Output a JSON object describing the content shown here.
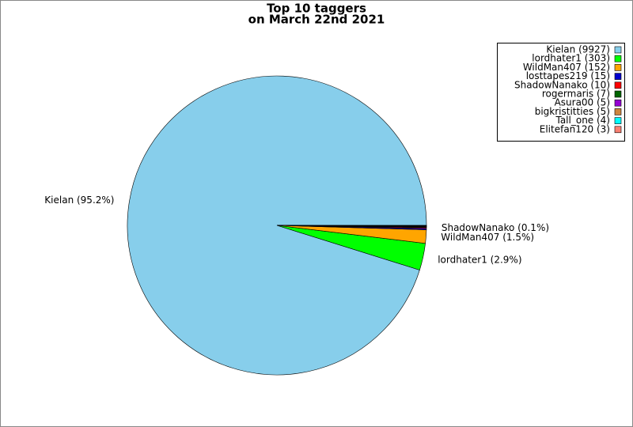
{
  "chart_data": {
    "type": "pie",
    "title": "Top 10 taggers",
    "subtitle": "on March 22nd 2021",
    "categories": [
      "Kielan",
      "lordhater1",
      "WildMan407",
      "losttapes219",
      "ShadowNanako",
      "rogermaris",
      "Asura00",
      "bigkristitties",
      "Tall_one",
      "Elitefan120"
    ],
    "values": [
      9927,
      303,
      152,
      15,
      10,
      7,
      5,
      5,
      4,
      3
    ],
    "colors": [
      "#87ceeb",
      "#00ff00",
      "#ffa500",
      "#0000cd",
      "#ff0000",
      "#006400",
      "#9400d3",
      "#cd853f",
      "#00ffff",
      "#fa8072"
    ],
    "legend_labels": [
      "Kielan (9927)",
      "lordhater1 (303)",
      "WildMan407 (152)",
      "losttapes219 (15)",
      "ShadowNanako (10)",
      "rogermaris (7)",
      "Asura00 (5)",
      "bigkristitties (5)",
      "Tall_one (4)",
      "Elitefan120 (3)"
    ],
    "slice_labels": [
      "Kielan (95.2%)",
      "lordhater1 (2.9%)",
      "WildMan407 (1.5%)",
      null,
      "ShadowNanako (0.1%)",
      null,
      null,
      null,
      null,
      null
    ],
    "legend": "upper right"
  }
}
